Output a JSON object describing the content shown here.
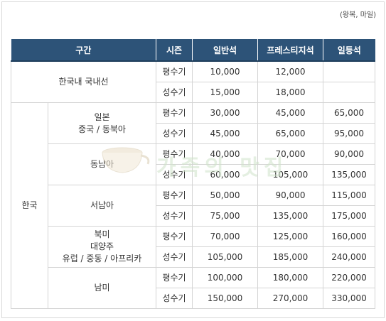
{
  "note": "(왕복, 마일)",
  "headers": [
    "구간",
    "시즌",
    "일반석",
    "프레스티지석",
    "일등석"
  ],
  "seasons": {
    "peak_off": "평수기",
    "peak_on": "성수기"
  },
  "groups": {
    "domestic": "한국내 국내선",
    "korea": "한국"
  },
  "regions": [
    {
      "name": "일본\n중국 / 동북아",
      "lines": [
        "일본",
        "중국 / 동북아"
      ]
    },
    {
      "name": "동남아",
      "lines": [
        "동남아"
      ]
    },
    {
      "name": "서남아",
      "lines": [
        "서남아"
      ]
    },
    {
      "name": "북미 대양주 유럽 / 중동 / 아프리카",
      "lines": [
        "북미",
        "대양주",
        "유럽 / 중동 / 아프리카"
      ]
    },
    {
      "name": "남미",
      "lines": [
        "남미"
      ]
    }
  ],
  "rows": {
    "domestic_off": [
      "10,000",
      "12,000",
      ""
    ],
    "domestic_on": [
      "15,000",
      "18,000",
      ""
    ],
    "r0_off": [
      "30,000",
      "45,000",
      "65,000"
    ],
    "r0_on": [
      "45,000",
      "65,000",
      "95,000"
    ],
    "r1_off": [
      "40,000",
      "70,000",
      "90,000"
    ],
    "r1_on": [
      "60,000",
      "105,000",
      "135,000"
    ],
    "r2_off": [
      "50,000",
      "90,000",
      "115,000"
    ],
    "r2_on": [
      "75,000",
      "135,000",
      "175,000"
    ],
    "r3_off": [
      "70,000",
      "125,000",
      "160,000"
    ],
    "r3_on": [
      "105,000",
      "185,000",
      "240,000"
    ],
    "r4_off": [
      "100,000",
      "180,000",
      "220,000"
    ],
    "r4_on": [
      "150,000",
      "270,000",
      "330,000"
    ]
  },
  "watermark": {
    "text": "가족의 맛집",
    "color": "#cfe3c9"
  }
}
